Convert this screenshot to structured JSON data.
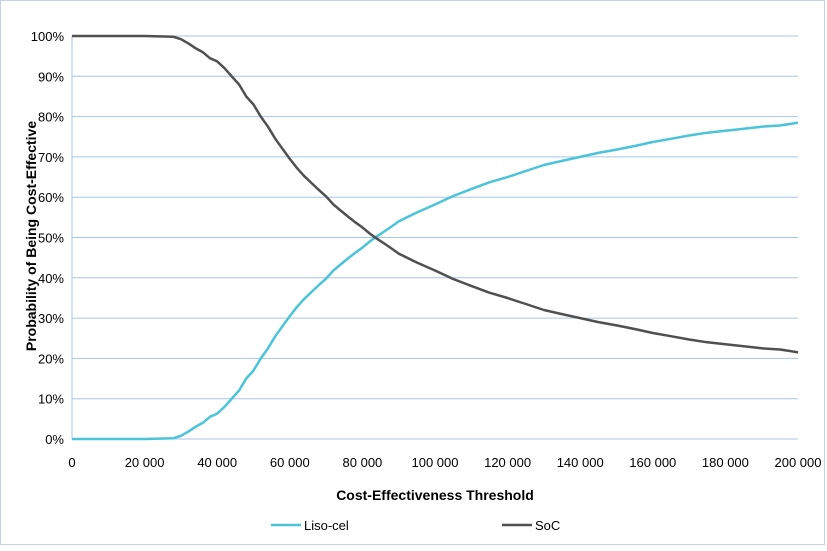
{
  "chart_data": {
    "type": "line",
    "title": "",
    "xlabel": "Cost-Effectiveness Threshold",
    "ylabel": "Probability of Being Cost-Effective",
    "xlim": [
      0,
      200000
    ],
    "ylim": [
      0,
      1
    ],
    "x_ticks": [
      0,
      20000,
      40000,
      60000,
      80000,
      100000,
      120000,
      140000,
      160000,
      180000,
      200000
    ],
    "x_tick_labels": [
      "0",
      "20 000",
      "40 000",
      "60 000",
      "80 000",
      "100 000",
      "120 000",
      "140 000",
      "160 000",
      "180 000",
      "200 000"
    ],
    "y_ticks": [
      0,
      0.1,
      0.2,
      0.3,
      0.4,
      0.5,
      0.6,
      0.7,
      0.8,
      0.9,
      1.0
    ],
    "y_tick_labels": [
      "0%",
      "10%",
      "20%",
      "30%",
      "40%",
      "50%",
      "60%",
      "70%",
      "80%",
      "90%",
      "100%"
    ],
    "grid": "horizontal",
    "legend_position": "bottom",
    "x": [
      0,
      10000,
      20000,
      28000,
      30000,
      32000,
      34000,
      36000,
      38000,
      40000,
      42000,
      44000,
      46000,
      48000,
      50000,
      52000,
      54000,
      56000,
      58000,
      60000,
      62000,
      64000,
      66000,
      68000,
      70000,
      72000,
      74000,
      76000,
      78000,
      80000,
      82000,
      84000,
      86000,
      88000,
      90000,
      95000,
      100000,
      105000,
      110000,
      115000,
      120000,
      125000,
      130000,
      135000,
      140000,
      145000,
      150000,
      155000,
      160000,
      165000,
      170000,
      175000,
      180000,
      185000,
      190000,
      195000,
      198000,
      200000
    ],
    "series": [
      {
        "name": "Liso-cel",
        "color": "#4bc3d9",
        "values": [
          0,
          0,
          0,
          0.002,
          0.008,
          0.018,
          0.03,
          0.04,
          0.055,
          0.063,
          0.08,
          0.1,
          0.12,
          0.15,
          0.17,
          0.2,
          0.225,
          0.255,
          0.28,
          0.305,
          0.328,
          0.348,
          0.365,
          0.382,
          0.398,
          0.418,
          0.433,
          0.448,
          0.462,
          0.475,
          0.49,
          0.503,
          0.515,
          0.527,
          0.54,
          0.562,
          0.582,
          0.603,
          0.62,
          0.637,
          0.65,
          0.665,
          0.68,
          0.69,
          0.7,
          0.71,
          0.718,
          0.727,
          0.737,
          0.745,
          0.753,
          0.76,
          0.765,
          0.77,
          0.775,
          0.778,
          0.782,
          0.785
        ]
      },
      {
        "name": "SoC",
        "color": "#505050",
        "values": [
          1.0,
          1.0,
          1.0,
          0.998,
          0.992,
          0.982,
          0.97,
          0.96,
          0.945,
          0.937,
          0.92,
          0.9,
          0.88,
          0.85,
          0.83,
          0.8,
          0.775,
          0.745,
          0.72,
          0.695,
          0.672,
          0.652,
          0.635,
          0.618,
          0.602,
          0.582,
          0.567,
          0.552,
          0.538,
          0.525,
          0.51,
          0.497,
          0.485,
          0.473,
          0.46,
          0.438,
          0.418,
          0.397,
          0.38,
          0.363,
          0.35,
          0.335,
          0.32,
          0.31,
          0.3,
          0.29,
          0.282,
          0.273,
          0.263,
          0.255,
          0.247,
          0.24,
          0.235,
          0.23,
          0.225,
          0.222,
          0.218,
          0.215
        ]
      }
    ]
  }
}
